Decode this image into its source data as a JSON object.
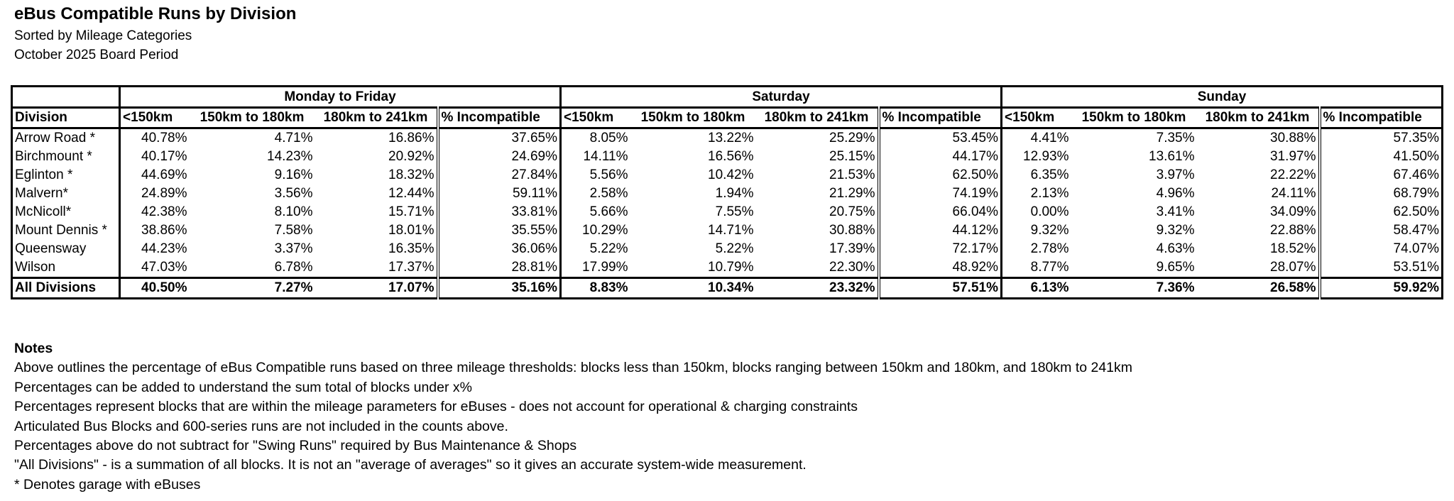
{
  "title": "eBus Compatible Runs by Division",
  "subtitle1": "Sorted by Mileage Categories",
  "subtitle2": "October 2025 Board Period",
  "table": {
    "sections": [
      "Monday to Friday",
      "Saturday",
      "Sunday"
    ],
    "division_header": "Division",
    "columns": [
      "<150km",
      "150km to 180km",
      "180km to 241km",
      "% Incompatible"
    ],
    "rows": [
      {
        "division": "Arrow Road *",
        "values": [
          "40.78%",
          "4.71%",
          "16.86%",
          "37.65%",
          "8.05%",
          "13.22%",
          "25.29%",
          "53.45%",
          "4.41%",
          "7.35%",
          "30.88%",
          "57.35%"
        ]
      },
      {
        "division": "Birchmount *",
        "values": [
          "40.17%",
          "14.23%",
          "20.92%",
          "24.69%",
          "14.11%",
          "16.56%",
          "25.15%",
          "44.17%",
          "12.93%",
          "13.61%",
          "31.97%",
          "41.50%"
        ]
      },
      {
        "division": "Eglinton *",
        "values": [
          "44.69%",
          "9.16%",
          "18.32%",
          "27.84%",
          "5.56%",
          "10.42%",
          "21.53%",
          "62.50%",
          "6.35%",
          "3.97%",
          "22.22%",
          "67.46%"
        ]
      },
      {
        "division": "Malvern*",
        "values": [
          "24.89%",
          "3.56%",
          "12.44%",
          "59.11%",
          "2.58%",
          "1.94%",
          "21.29%",
          "74.19%",
          "2.13%",
          "4.96%",
          "24.11%",
          "68.79%"
        ]
      },
      {
        "division": "McNicoll*",
        "values": [
          "42.38%",
          "8.10%",
          "15.71%",
          "33.81%",
          "5.66%",
          "7.55%",
          "20.75%",
          "66.04%",
          "0.00%",
          "3.41%",
          "34.09%",
          "62.50%"
        ]
      },
      {
        "division": "Mount Dennis *",
        "values": [
          "38.86%",
          "7.58%",
          "18.01%",
          "35.55%",
          "10.29%",
          "14.71%",
          "30.88%",
          "44.12%",
          "9.32%",
          "9.32%",
          "22.88%",
          "58.47%"
        ]
      },
      {
        "division": "Queensway",
        "values": [
          "44.23%",
          "3.37%",
          "16.35%",
          "36.06%",
          "5.22%",
          "5.22%",
          "17.39%",
          "72.17%",
          "2.78%",
          "4.63%",
          "18.52%",
          "74.07%"
        ]
      },
      {
        "division": "Wilson",
        "values": [
          "47.03%",
          "6.78%",
          "17.37%",
          "28.81%",
          "17.99%",
          "10.79%",
          "22.30%",
          "48.92%",
          "8.77%",
          "9.65%",
          "28.07%",
          "53.51%"
        ]
      }
    ],
    "total": {
      "division": "All Divisions",
      "values": [
        "40.50%",
        "7.27%",
        "17.07%",
        "35.16%",
        "8.83%",
        "10.34%",
        "23.32%",
        "57.51%",
        "6.13%",
        "7.36%",
        "26.58%",
        "59.92%"
      ]
    }
  },
  "notes": {
    "title": "Notes",
    "items": [
      "Above outlines the percentage of eBus Compatible runs based on three mileage thresholds: blocks less than 150km, blocks ranging between 150km and 180km, and 180km to 241km",
      "Percentages can be added to understand the sum total of blocks under x%",
      "Percentages represent blocks that are within the mileage parameters for eBuses - does not account for operational & charging constraints",
      "Articulated Bus Blocks and 600-series runs are not included in the counts above.",
      "Percentages above do not subtract for \"Swing Runs\" required by Bus Maintenance & Shops",
      "\"All Divisions\" - is a summation of all blocks. It is not an \"average of averages\" so it gives an accurate system-wide measurement.",
      "* Denotes garage with eBuses"
    ]
  }
}
